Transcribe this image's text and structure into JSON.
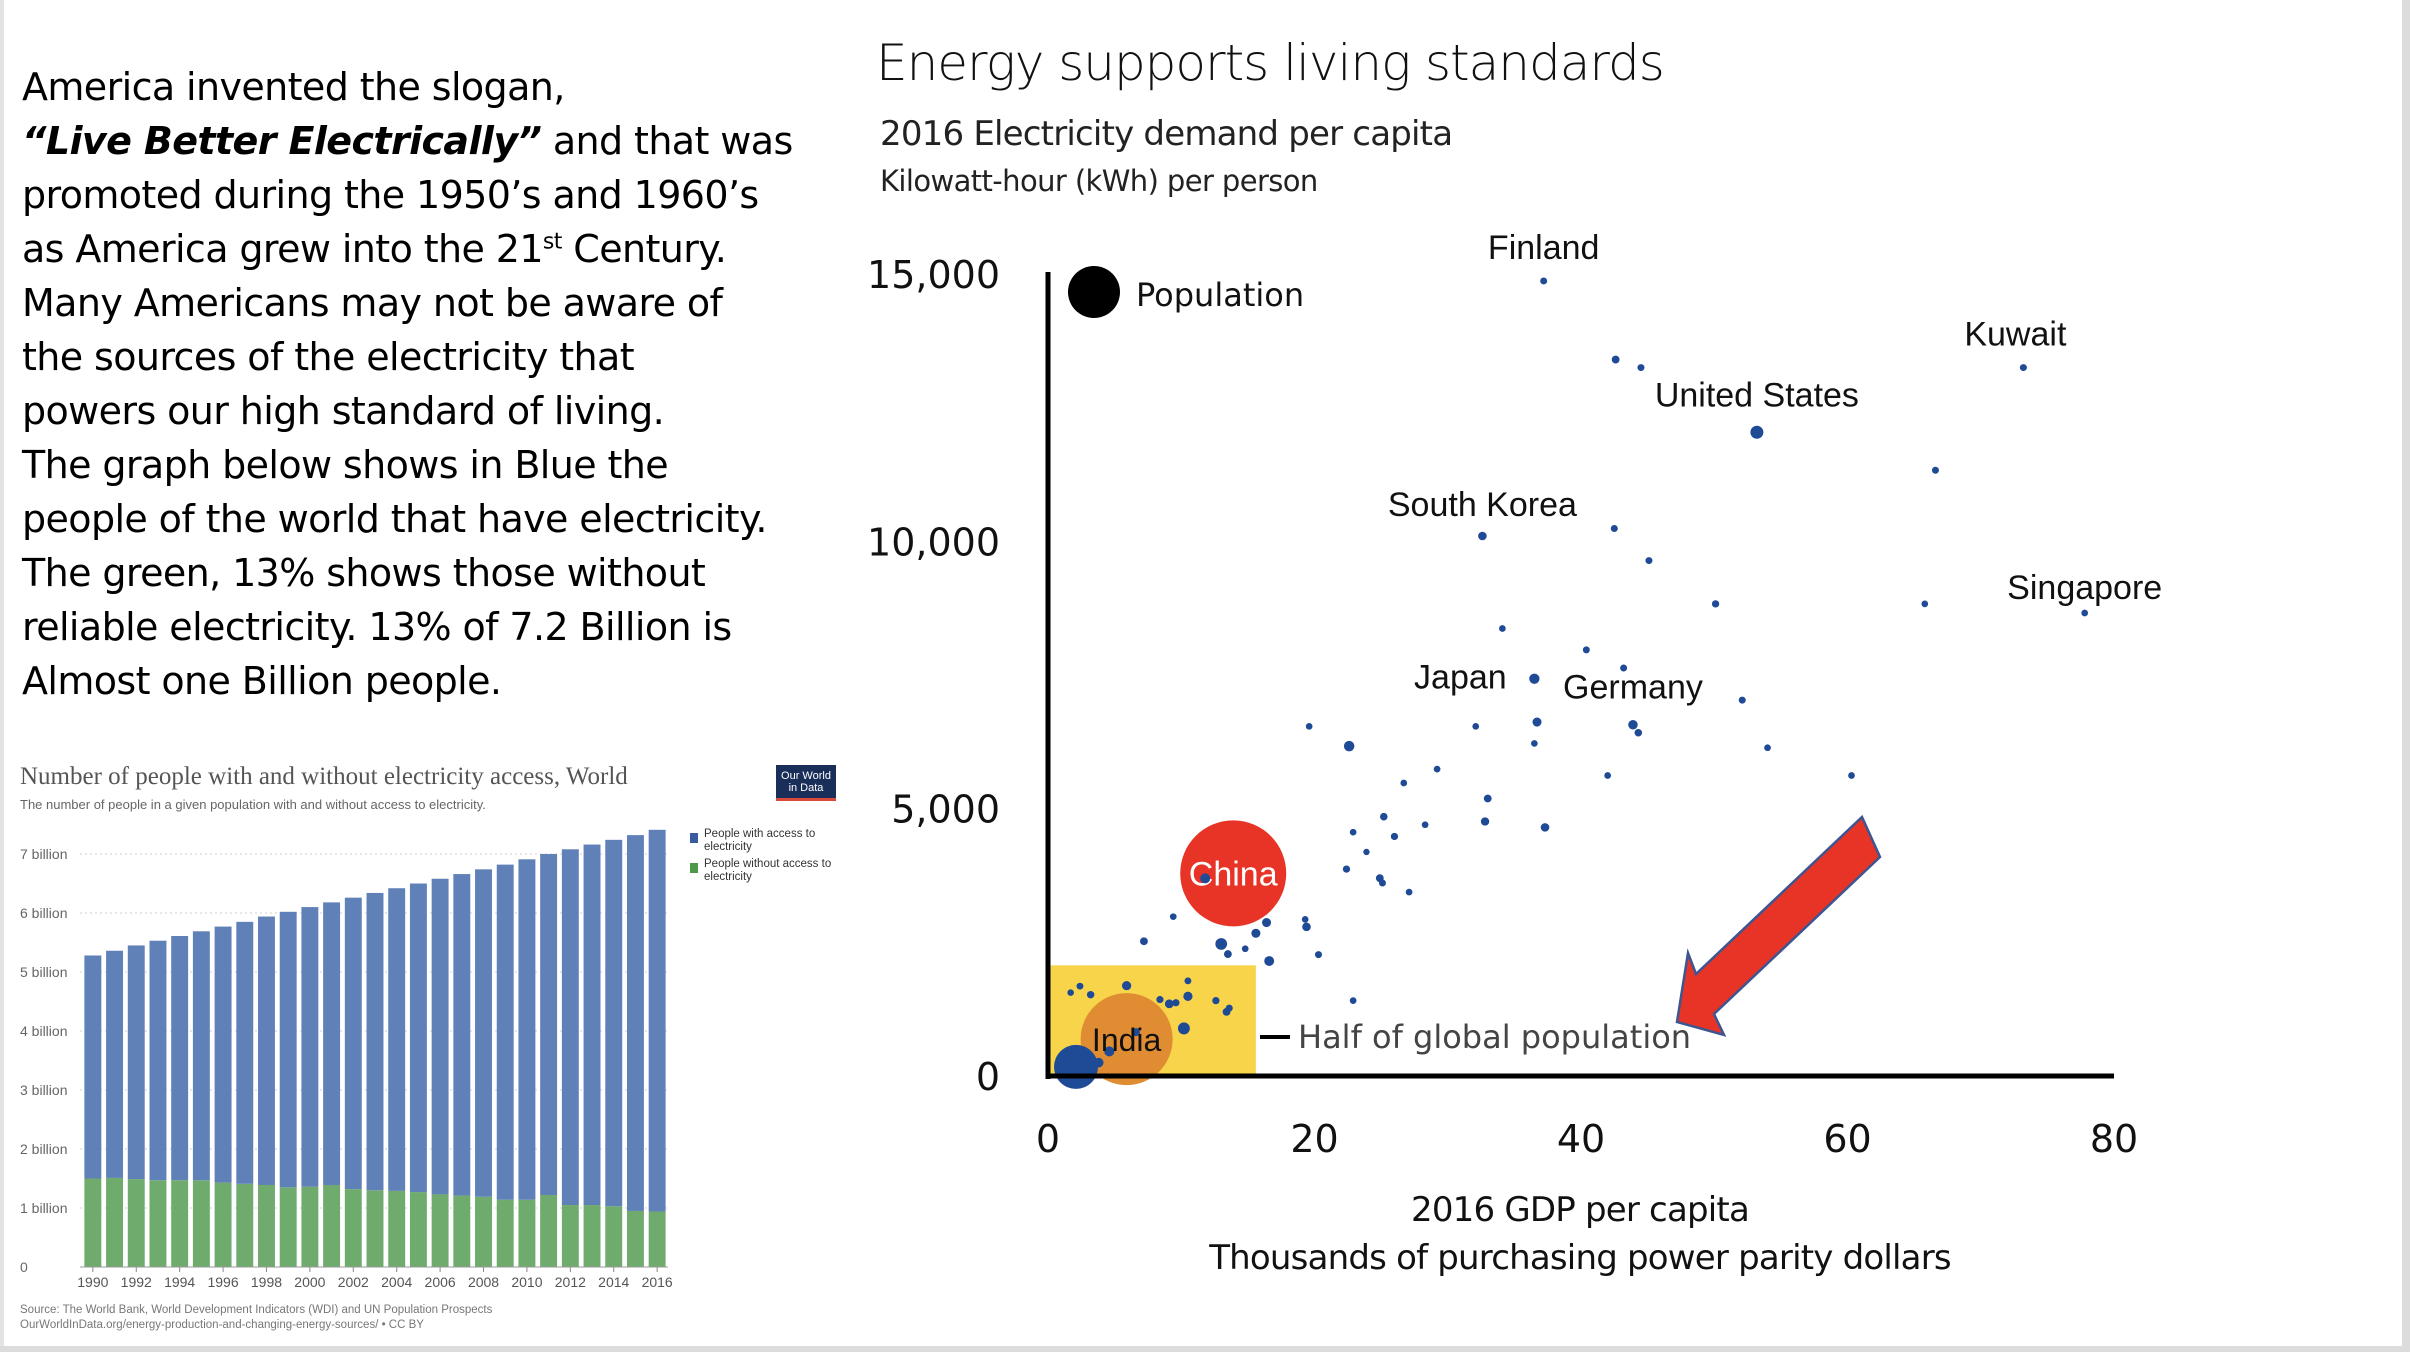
{
  "intro": {
    "lines": [
      {
        "text": "America invented the slogan,"
      },
      {
        "slogan": "“Live Better Electrically”",
        "text": " and that was"
      },
      {
        "text": "promoted during the 1950’s and 1960’s"
      },
      {
        "text": "as America grew into the 21",
        "sup": "st",
        "after": " Century."
      },
      {
        "text": "Many Americans may not be aware of"
      },
      {
        "text": "the sources of the electricity that"
      },
      {
        "text": "powers our high standard of living."
      },
      {
        "text": "The graph below shows in Blue the"
      },
      {
        "text": "people of the world that have electricity."
      },
      {
        "text": "The green, 13% shows those without"
      },
      {
        "text": "reliable electricity. 13% of 7.2 Billion is"
      },
      {
        "text": "Almost one Billion people."
      }
    ]
  },
  "owid": {
    "logo_line1": "Our World",
    "logo_line2": "in Data",
    "source_line1": "Source: The World Bank, World Development Indicators (WDI) and UN Population Prospects",
    "source_line2": "OurWorldInData.org/energy-production-and-changing-energy-sources/ • CC BY"
  },
  "colors": {
    "with_access": "#6080b8",
    "without_access": "#6fab6c",
    "bubble": "#1f4a96",
    "china": "#e83426",
    "india": "#e08c32",
    "half_box": "#f7d44a",
    "arrow": "#e83426",
    "arrow_stroke": "#3d5591"
  },
  "chart_data": [
    {
      "type": "bar",
      "stacked": true,
      "title": "Number of people with and without electricity access, World",
      "subtitle": "The number of people in a given population with and without access to electricity.",
      "xlabel": "",
      "ylabel": "",
      "ylim": [
        0,
        7.5
      ],
      "y_unit": "billion",
      "y_ticks": [
        "0",
        "1 billion",
        "2 billion",
        "3 billion",
        "4 billion",
        "5 billion",
        "6 billion",
        "7 billion"
      ],
      "x_tick_labels": [
        "1990",
        "1992",
        "1994",
        "1996",
        "1998",
        "2000",
        "2002",
        "2004",
        "2006",
        "2008",
        "2010",
        "2012",
        "2014",
        "2016"
      ],
      "grid": true,
      "legend_position": "right",
      "categories": [
        "1990",
        "1991",
        "1992",
        "1993",
        "1994",
        "1995",
        "1996",
        "1997",
        "1998",
        "1999",
        "2000",
        "2001",
        "2002",
        "2003",
        "2004",
        "2005",
        "2006",
        "2007",
        "2008",
        "2009",
        "2010",
        "2011",
        "2012",
        "2013",
        "2014",
        "2015",
        "2016"
      ],
      "series": [
        {
          "name": "People without access to electricity",
          "values": [
            1.5,
            1.51,
            1.49,
            1.47,
            1.47,
            1.47,
            1.43,
            1.41,
            1.39,
            1.35,
            1.36,
            1.39,
            1.32,
            1.3,
            1.29,
            1.27,
            1.23,
            1.21,
            1.19,
            1.14,
            1.14,
            1.22,
            1.05,
            1.05,
            1.03,
            0.95,
            0.94
          ]
        },
        {
          "name": "People with access to electricity",
          "values": [
            3.78,
            3.85,
            3.96,
            4.06,
            4.14,
            4.22,
            4.34,
            4.44,
            4.55,
            4.67,
            4.74,
            4.79,
            4.94,
            5.04,
            5.13,
            5.23,
            5.35,
            5.45,
            5.55,
            5.68,
            5.77,
            5.78,
            6.03,
            6.11,
            6.21,
            6.37,
            6.47
          ]
        }
      ],
      "legend": [
        "People with access to electricity",
        "People without access to electricity"
      ]
    },
    {
      "type": "scatter",
      "title": "Energy supports living standards",
      "subtitle": "2016 Electricity demand per capita",
      "ylabel": "Kilowatt-hour (kWh) per person",
      "xlabel": "2016 GDP per capita",
      "xlabel2": "Thousands of purchasing power parity dollars",
      "xlim": [
        0,
        80
      ],
      "ylim": [
        0,
        15000
      ],
      "x_ticks": [
        "0",
        "20",
        "40",
        "60",
        "80"
      ],
      "y_ticks": [
        "0",
        "5,000",
        "10,000",
        "15,000"
      ],
      "grid": false,
      "size_legend": "Population",
      "annotation": "Half of global population",
      "half_box": {
        "x": [
          0,
          15.6
        ],
        "y": [
          0,
          2070
        ]
      },
      "points": [
        {
          "x": 37.2,
          "y": 14870,
          "size": 1,
          "label": "Finland"
        },
        {
          "x": 42.6,
          "y": 13400,
          "size": 1.3
        },
        {
          "x": 44.5,
          "y": 13250,
          "size": 1
        },
        {
          "x": 73.2,
          "y": 13250,
          "size": 1,
          "label": "Kuwait"
        },
        {
          "x": 53.2,
          "y": 12040,
          "size": 4,
          "label": "United States"
        },
        {
          "x": 66.6,
          "y": 11330,
          "size": 1
        },
        {
          "x": 32.6,
          "y": 10100,
          "size": 1.6,
          "label": "South Korea"
        },
        {
          "x": 42.5,
          "y": 10240,
          "size": 1
        },
        {
          "x": 45.1,
          "y": 9640,
          "size": 1
        },
        {
          "x": 50.1,
          "y": 8830,
          "size": 1.1
        },
        {
          "x": 65.8,
          "y": 8830,
          "size": 0.9
        },
        {
          "x": 77.8,
          "y": 8660,
          "size": 0.9,
          "label": "Singapore"
        },
        {
          "x": 34.1,
          "y": 8370,
          "size": 0.9
        },
        {
          "x": 40.4,
          "y": 7970,
          "size": 1
        },
        {
          "x": 43.2,
          "y": 7630,
          "size": 1
        },
        {
          "x": 36.5,
          "y": 7430,
          "size": 2.4,
          "label": "Japan"
        },
        {
          "x": 52.1,
          "y": 7030,
          "size": 1
        },
        {
          "x": 36.7,
          "y": 6620,
          "size": 1.8
        },
        {
          "x": 32.1,
          "y": 6540,
          "size": 0.9
        },
        {
          "x": 43.9,
          "y": 6570,
          "size": 2.0,
          "label": "Germany"
        },
        {
          "x": 44.3,
          "y": 6420,
          "size": 1.2
        },
        {
          "x": 36.5,
          "y": 6220,
          "size": 0.9
        },
        {
          "x": 19.6,
          "y": 6540,
          "size": 0.9
        },
        {
          "x": 22.6,
          "y": 6170,
          "size": 2.5
        },
        {
          "x": 54.0,
          "y": 6140,
          "size": 0.9
        },
        {
          "x": 29.2,
          "y": 5740,
          "size": 0.9
        },
        {
          "x": 42.0,
          "y": 5620,
          "size": 0.9
        },
        {
          "x": 60.3,
          "y": 5620,
          "size": 0.9
        },
        {
          "x": 26.7,
          "y": 5480,
          "size": 0.9
        },
        {
          "x": 33.0,
          "y": 5190,
          "size": 1.3
        },
        {
          "x": 25.2,
          "y": 4850,
          "size": 1.2
        },
        {
          "x": 28.3,
          "y": 4700,
          "size": 0.9
        },
        {
          "x": 32.8,
          "y": 4760,
          "size": 1.5
        },
        {
          "x": 37.3,
          "y": 4650,
          "size": 1.6
        },
        {
          "x": 26.0,
          "y": 4480,
          "size": 1.1
        },
        {
          "x": 22.9,
          "y": 4560,
          "size": 0.9
        },
        {
          "x": 23.9,
          "y": 4190,
          "size": 0.8
        },
        {
          "x": 22.4,
          "y": 3870,
          "size": 1.1
        },
        {
          "x": 24.9,
          "y": 3700,
          "size": 1.3
        },
        {
          "x": 25.1,
          "y": 3610,
          "size": 1
        },
        {
          "x": 27.1,
          "y": 3440,
          "size": 0.9
        },
        {
          "x": 13.9,
          "y": 3790,
          "size": 12,
          "label": "China",
          "highlight": "china"
        },
        {
          "x": 9.4,
          "y": 2980,
          "size": 0.9
        },
        {
          "x": 7.2,
          "y": 2520,
          "size": 1.3
        },
        {
          "x": 13.0,
          "y": 2470,
          "size": 3.2
        },
        {
          "x": 15.6,
          "y": 2670,
          "size": 1.8
        },
        {
          "x": 16.4,
          "y": 2870,
          "size": 1.8
        },
        {
          "x": 16.6,
          "y": 2150,
          "size": 2.2
        },
        {
          "x": 19.3,
          "y": 2930,
          "size": 0.9
        },
        {
          "x": 19.4,
          "y": 2790,
          "size": 1.6
        },
        {
          "x": 20.3,
          "y": 2270,
          "size": 1
        },
        {
          "x": 14.8,
          "y": 2380,
          "size": 0.9
        },
        {
          "x": 13.5,
          "y": 2280,
          "size": 1.3
        },
        {
          "x": 22.9,
          "y": 1410,
          "size": 0.9
        },
        {
          "x": 10.5,
          "y": 1780,
          "size": 0.9
        },
        {
          "x": 10.5,
          "y": 1490,
          "size": 1.8
        },
        {
          "x": 5.9,
          "y": 1690,
          "size": 1.8
        },
        {
          "x": 12.6,
          "y": 1410,
          "size": 1.1
        },
        {
          "x": 13.4,
          "y": 1200,
          "size": 1.3
        },
        {
          "x": 13.6,
          "y": 1270,
          "size": 1
        },
        {
          "x": 9.1,
          "y": 1350,
          "size": 1.6
        },
        {
          "x": 9.6,
          "y": 1370,
          "size": 1
        },
        {
          "x": 8.4,
          "y": 1430,
          "size": 1
        },
        {
          "x": 1.7,
          "y": 1560,
          "size": 0.8
        },
        {
          "x": 2.4,
          "y": 1680,
          "size": 0.9
        },
        {
          "x": 3.2,
          "y": 1520,
          "size": 1.1
        },
        {
          "x": 10.2,
          "y": 890,
          "size": 3.2
        },
        {
          "x": 5.9,
          "y": 690,
          "size": 10,
          "label": "India",
          "highlight": "india"
        },
        {
          "x": 6.6,
          "y": 820,
          "size": 1.3
        },
        {
          "x": 4.6,
          "y": 460,
          "size": 2.2
        },
        {
          "x": 3.8,
          "y": 250,
          "size": 2.0
        },
        {
          "x": 2.1,
          "y": 170,
          "size": 5.2
        }
      ]
    }
  ]
}
